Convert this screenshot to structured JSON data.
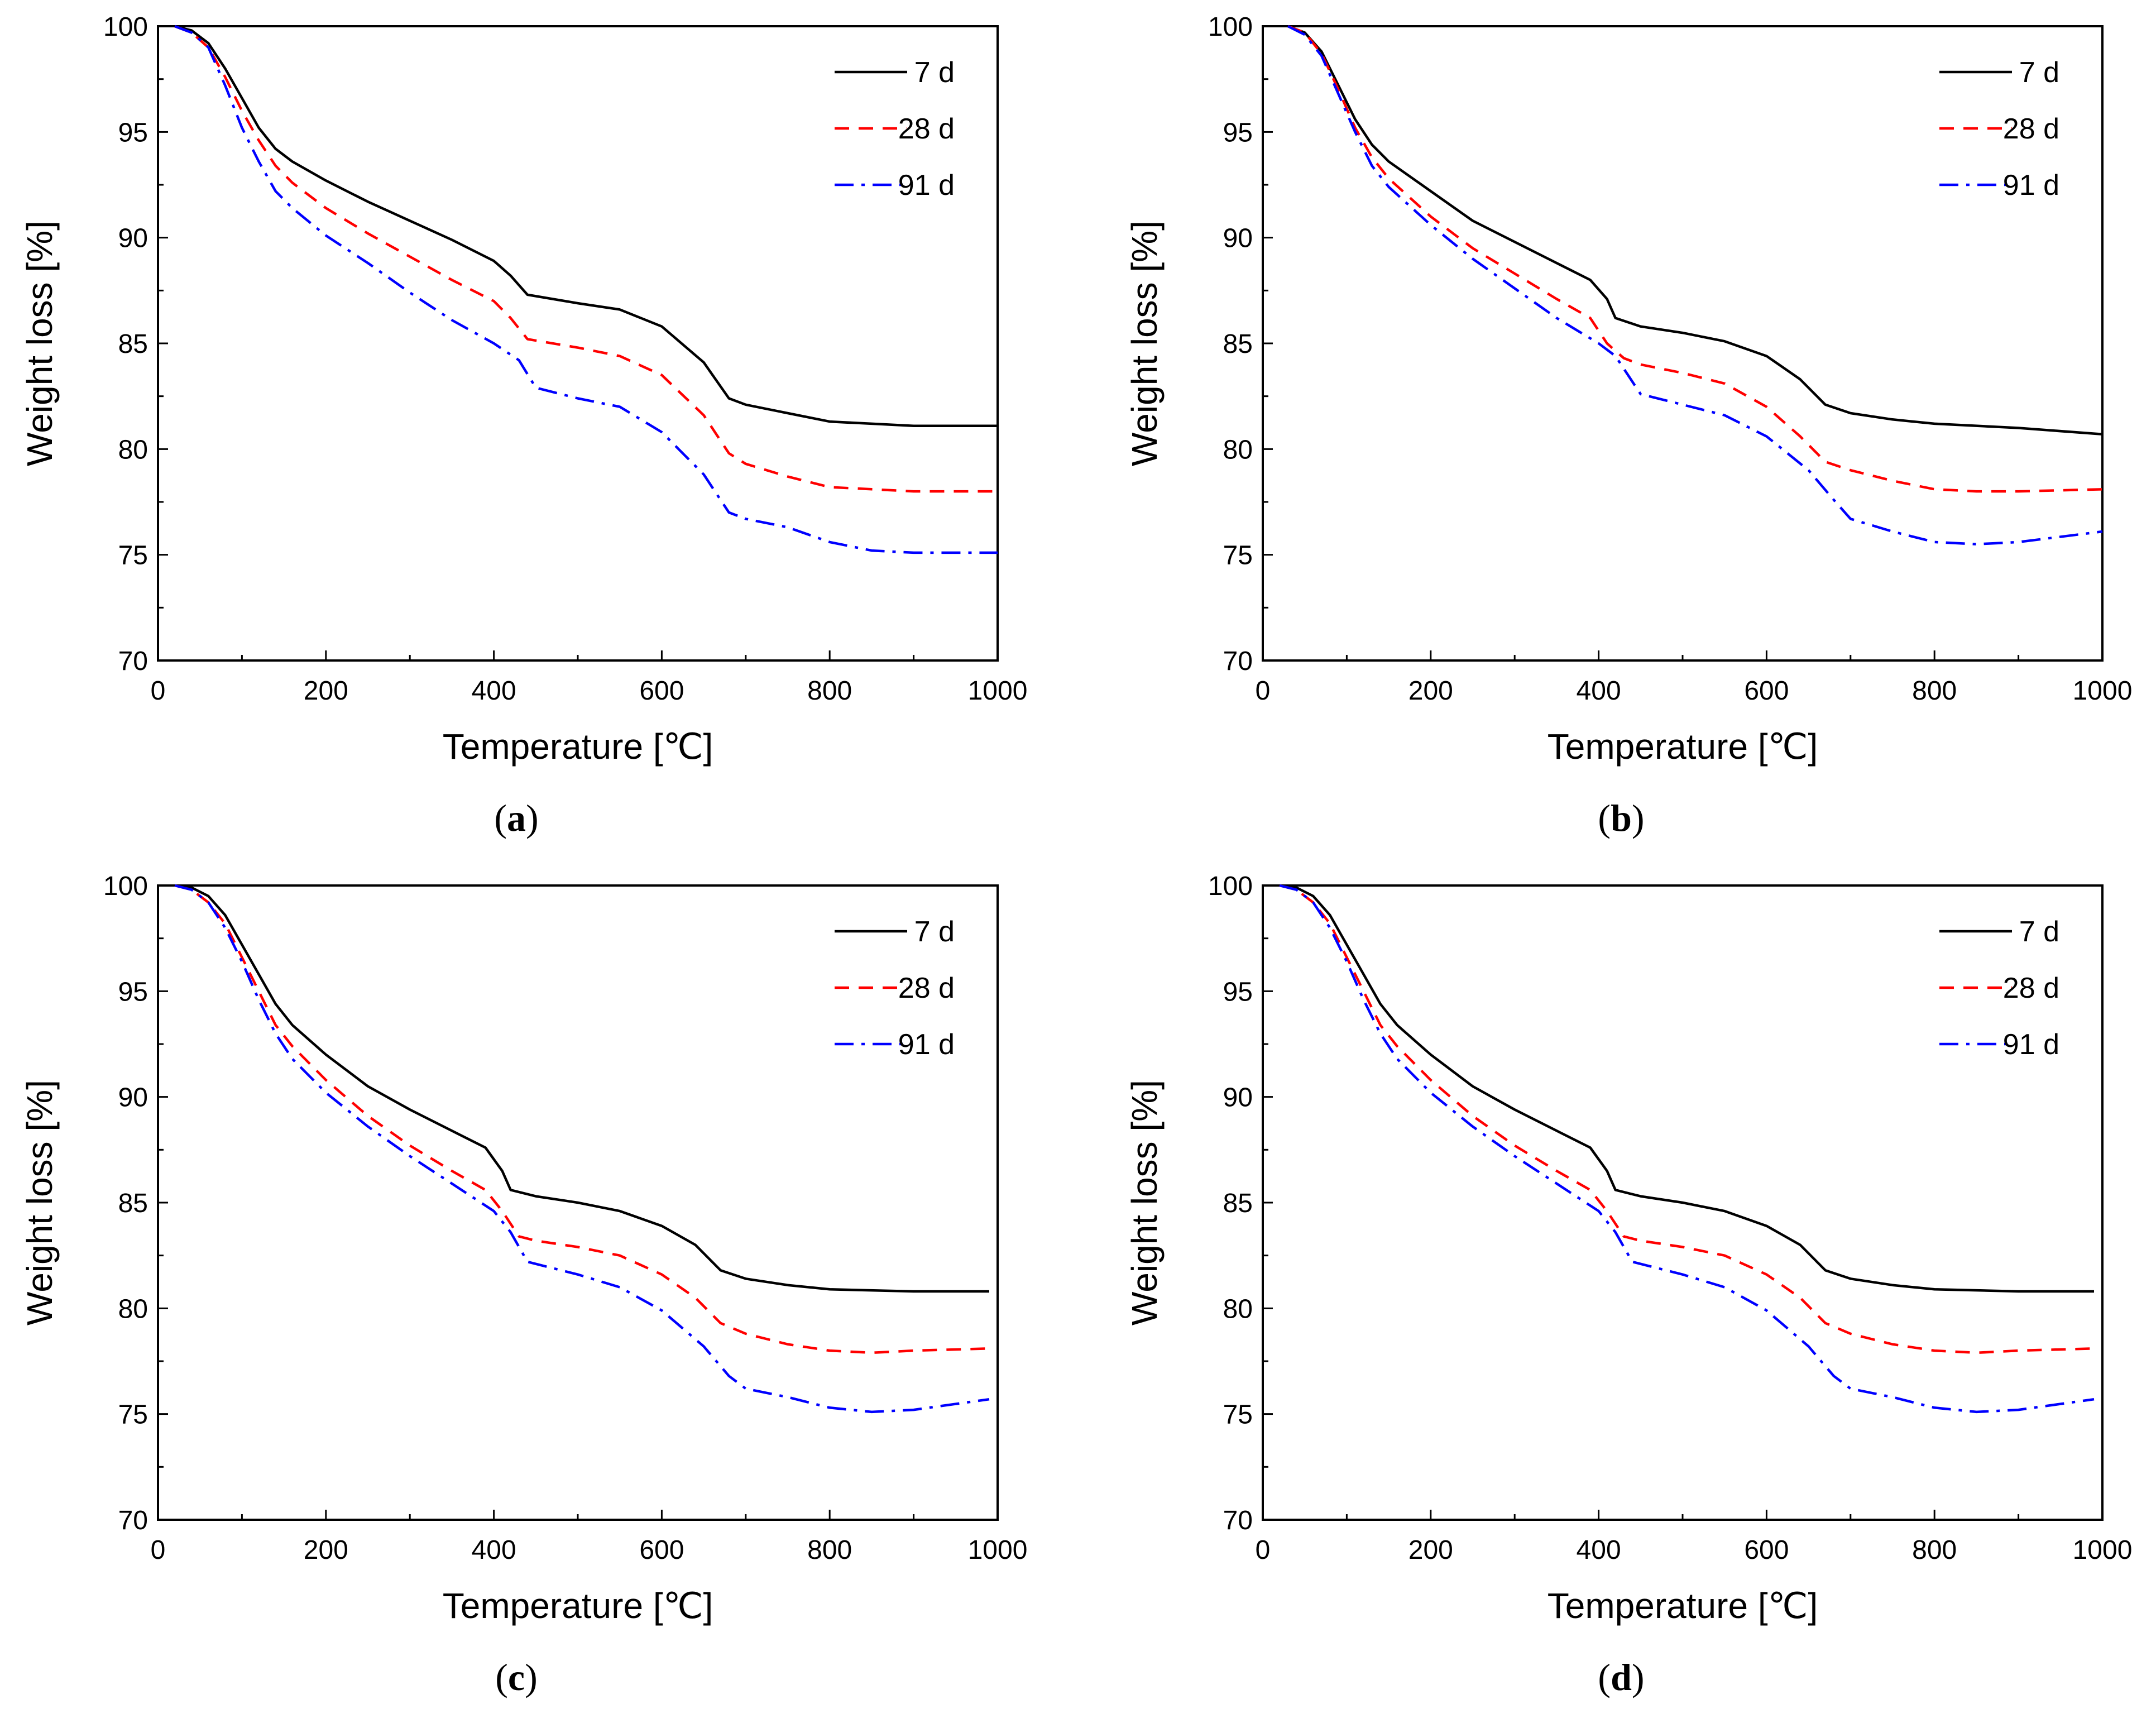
{
  "colors": {
    "7 d": "#000000",
    "28 d": "#ff0000",
    "91 d": "#0000ff"
  },
  "chart_data": [
    {
      "type": "line",
      "panel": "a",
      "xlabel": "Temperature [℃]",
      "ylabel": "Weight loss [%]",
      "xlim": [
        0,
        1000
      ],
      "ylim": [
        70,
        100
      ],
      "xticks": [
        0,
        200,
        400,
        600,
        800,
        1000
      ],
      "yticks": [
        70,
        75,
        80,
        85,
        90,
        95,
        100
      ],
      "legend": "top-right",
      "series": [
        {
          "name": "7 d",
          "style": "solid",
          "x": [
            20,
            40,
            60,
            80,
            100,
            120,
            140,
            160,
            200,
            250,
            300,
            350,
            400,
            420,
            440,
            500,
            550,
            600,
            650,
            680,
            700,
            750,
            800,
            850,
            900,
            1000
          ],
          "y": [
            100,
            99.8,
            99.2,
            98.0,
            96.6,
            95.2,
            94.2,
            93.6,
            92.7,
            91.7,
            90.8,
            89.9,
            88.9,
            88.2,
            87.3,
            86.9,
            86.6,
            85.8,
            84.1,
            82.4,
            82.1,
            81.7,
            81.3,
            81.2,
            81.1,
            81.1
          ]
        },
        {
          "name": "28 d",
          "style": "dashed",
          "x": [
            20,
            40,
            60,
            80,
            100,
            120,
            140,
            160,
            200,
            250,
            300,
            350,
            400,
            420,
            440,
            500,
            550,
            600,
            650,
            680,
            700,
            750,
            800,
            850,
            900,
            1000
          ],
          "y": [
            100,
            99.7,
            99.0,
            97.6,
            96.0,
            94.6,
            93.4,
            92.6,
            91.4,
            90.2,
            89.1,
            88.0,
            87.0,
            86.2,
            85.2,
            84.8,
            84.4,
            83.5,
            81.6,
            79.8,
            79.3,
            78.7,
            78.2,
            78.1,
            78.0,
            78.0
          ]
        },
        {
          "name": "91 d",
          "style": "dashdot",
          "x": [
            20,
            40,
            60,
            80,
            100,
            120,
            140,
            160,
            200,
            250,
            300,
            350,
            400,
            430,
            450,
            500,
            550,
            600,
            650,
            680,
            700,
            750,
            800,
            850,
            900,
            1000
          ],
          "y": [
            100,
            99.7,
            99.0,
            97.2,
            95.2,
            93.6,
            92.2,
            91.4,
            90.1,
            88.8,
            87.4,
            86.1,
            85.0,
            84.2,
            82.9,
            82.4,
            82.0,
            80.8,
            78.8,
            77.0,
            76.7,
            76.3,
            75.6,
            75.2,
            75.1,
            75.1
          ]
        }
      ]
    },
    {
      "type": "line",
      "panel": "b",
      "xlabel": "Temperature [℃]",
      "ylabel": "Weight loss [%]",
      "xlim": [
        0,
        1000
      ],
      "ylim": [
        70,
        100
      ],
      "xticks": [
        0,
        200,
        400,
        600,
        800,
        1000
      ],
      "yticks": [
        70,
        75,
        80,
        85,
        90,
        95,
        100
      ],
      "legend": "top-right",
      "series": [
        {
          "name": "7 d",
          "style": "solid",
          "x": [
            30,
            50,
            70,
            90,
            110,
            130,
            150,
            200,
            250,
            300,
            350,
            390,
            410,
            420,
            450,
            500,
            550,
            600,
            640,
            670,
            700,
            750,
            800,
            900,
            1000
          ],
          "y": [
            100,
            99.7,
            98.8,
            97.2,
            95.6,
            94.4,
            93.6,
            92.2,
            90.8,
            89.8,
            88.8,
            88.0,
            87.1,
            86.2,
            85.8,
            85.5,
            85.1,
            84.4,
            83.3,
            82.1,
            81.7,
            81.4,
            81.2,
            81.0,
            80.7
          ]
        },
        {
          "name": "28 d",
          "style": "dashed",
          "x": [
            30,
            50,
            70,
            90,
            110,
            130,
            150,
            200,
            250,
            300,
            350,
            390,
            410,
            430,
            450,
            500,
            550,
            600,
            640,
            670,
            700,
            750,
            800,
            850,
            900,
            1000
          ],
          "y": [
            100,
            99.7,
            98.7,
            97.0,
            95.2,
            93.8,
            92.8,
            91.0,
            89.5,
            88.3,
            87.1,
            86.2,
            85.0,
            84.3,
            84.0,
            83.6,
            83.1,
            82.0,
            80.6,
            79.4,
            79.0,
            78.5,
            78.1,
            78.0,
            78.0,
            78.1
          ]
        },
        {
          "name": "91 d",
          "style": "dashdot",
          "x": [
            30,
            50,
            70,
            90,
            110,
            130,
            150,
            200,
            250,
            300,
            350,
            400,
            420,
            440,
            450,
            500,
            550,
            600,
            650,
            680,
            700,
            750,
            800,
            850,
            900,
            1000
          ],
          "y": [
            100,
            99.6,
            98.6,
            96.8,
            95.0,
            93.4,
            92.4,
            90.6,
            89.0,
            87.6,
            86.2,
            85.0,
            84.4,
            83.2,
            82.6,
            82.1,
            81.6,
            80.6,
            79.0,
            77.6,
            76.7,
            76.1,
            75.6,
            75.5,
            75.6,
            76.1
          ]
        }
      ]
    },
    {
      "type": "line",
      "panel": "c",
      "xlabel": "Temperature [℃]",
      "ylabel": "Weight loss [%]",
      "xlim": [
        0,
        1000
      ],
      "ylim": [
        70,
        100
      ],
      "xticks": [
        0,
        200,
        400,
        600,
        800,
        1000
      ],
      "yticks": [
        70,
        75,
        80,
        85,
        90,
        95,
        100
      ],
      "legend": "top-right",
      "series": [
        {
          "name": "7 d",
          "style": "solid",
          "x": [
            20,
            40,
            60,
            80,
            100,
            120,
            140,
            160,
            200,
            250,
            300,
            350,
            390,
            410,
            420,
            450,
            500,
            550,
            600,
            640,
            670,
            700,
            750,
            800,
            900,
            990
          ],
          "y": [
            100,
            99.9,
            99.5,
            98.6,
            97.2,
            95.8,
            94.4,
            93.4,
            92.0,
            90.5,
            89.4,
            88.4,
            87.6,
            86.5,
            85.6,
            85.3,
            85.0,
            84.6,
            83.9,
            83.0,
            81.8,
            81.4,
            81.1,
            80.9,
            80.8,
            80.8
          ]
        },
        {
          "name": "28 d",
          "style": "dashed",
          "x": [
            20,
            40,
            60,
            80,
            100,
            120,
            140,
            160,
            200,
            250,
            300,
            350,
            390,
            410,
            430,
            450,
            500,
            550,
            600,
            640,
            670,
            700,
            750,
            800,
            850,
            900,
            990
          ],
          "y": [
            100,
            99.8,
            99.2,
            98.2,
            96.6,
            95.0,
            93.4,
            92.4,
            90.8,
            89.1,
            87.7,
            86.5,
            85.6,
            84.6,
            83.4,
            83.2,
            82.9,
            82.5,
            81.6,
            80.5,
            79.3,
            78.8,
            78.3,
            78.0,
            77.9,
            78.0,
            78.1
          ]
        },
        {
          "name": "91 d",
          "style": "dashdot",
          "x": [
            20,
            40,
            60,
            80,
            100,
            120,
            140,
            160,
            200,
            250,
            300,
            350,
            400,
            420,
            440,
            500,
            550,
            600,
            650,
            680,
            700,
            750,
            800,
            850,
            900,
            990
          ],
          "y": [
            100,
            99.8,
            99.2,
            98.0,
            96.4,
            94.6,
            93.0,
            91.8,
            90.2,
            88.6,
            87.2,
            85.9,
            84.6,
            83.6,
            82.2,
            81.6,
            81.0,
            79.9,
            78.2,
            76.8,
            76.2,
            75.8,
            75.3,
            75.1,
            75.2,
            75.7
          ]
        }
      ]
    },
    {
      "type": "line",
      "panel": "d",
      "xlabel": "Temperature [℃]",
      "ylabel": "Weight loss [%]",
      "xlim": [
        0,
        1000
      ],
      "ylim": [
        70,
        100
      ],
      "xticks": [
        0,
        200,
        400,
        600,
        800,
        1000
      ],
      "yticks": [
        70,
        75,
        80,
        85,
        90,
        95,
        100
      ],
      "legend": "top-right",
      "series": [
        {
          "name": "7 d",
          "style": "solid",
          "x": [
            20,
            40,
            60,
            80,
            100,
            120,
            140,
            160,
            200,
            250,
            300,
            350,
            390,
            410,
            420,
            450,
            500,
            550,
            600,
            640,
            670,
            700,
            750,
            800,
            900,
            990
          ],
          "y": [
            100,
            99.9,
            99.5,
            98.6,
            97.2,
            95.8,
            94.4,
            93.4,
            92.0,
            90.5,
            89.4,
            88.4,
            87.6,
            86.5,
            85.6,
            85.3,
            85.0,
            84.6,
            83.9,
            83.0,
            81.8,
            81.4,
            81.1,
            80.9,
            80.8,
            80.8
          ]
        },
        {
          "name": "28 d",
          "style": "dashed",
          "x": [
            20,
            40,
            60,
            80,
            100,
            120,
            140,
            160,
            200,
            250,
            300,
            350,
            390,
            410,
            430,
            450,
            500,
            550,
            600,
            640,
            670,
            700,
            750,
            800,
            850,
            900,
            990
          ],
          "y": [
            100,
            99.8,
            99.2,
            98.2,
            96.6,
            95.0,
            93.4,
            92.4,
            90.8,
            89.1,
            87.7,
            86.5,
            85.6,
            84.6,
            83.4,
            83.2,
            82.9,
            82.5,
            81.6,
            80.5,
            79.3,
            78.8,
            78.3,
            78.0,
            77.9,
            78.0,
            78.1
          ]
        },
        {
          "name": "91 d",
          "style": "dashdot",
          "x": [
            20,
            40,
            60,
            80,
            100,
            120,
            140,
            160,
            200,
            250,
            300,
            350,
            400,
            420,
            440,
            500,
            550,
            600,
            650,
            680,
            700,
            750,
            800,
            850,
            900,
            990
          ],
          "y": [
            100,
            99.8,
            99.2,
            98.0,
            96.4,
            94.6,
            93.0,
            91.8,
            90.2,
            88.6,
            87.2,
            85.9,
            84.6,
            83.6,
            82.2,
            81.6,
            81.0,
            79.9,
            78.2,
            76.8,
            76.2,
            75.8,
            75.3,
            75.1,
            75.2,
            75.7
          ]
        }
      ]
    }
  ]
}
